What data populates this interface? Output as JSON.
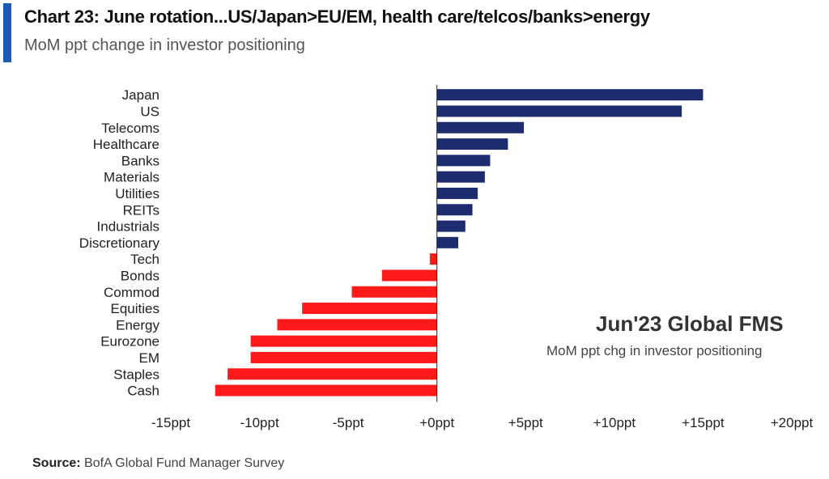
{
  "header": {
    "title": "Chart 23: June rotation...US/Japan>EU/EM, health care/telcos/banks>energy",
    "subtitle": "MoM ppt change in investor positioning"
  },
  "annotation": {
    "title": "Jun'23 Global FMS",
    "subtitle": "MoM ppt chg in investor positioning"
  },
  "source": {
    "label": "Source:",
    "text": "BofA Global Fund Manager Survey"
  },
  "colors": {
    "positive": "#1c2c6e",
    "negative": "#ff1a1a",
    "accent": "#1a5bb5"
  },
  "chart_data": {
    "type": "bar",
    "orientation": "horizontal",
    "categories": [
      "Japan",
      "US",
      "Telecoms",
      "Healthcare",
      "Banks",
      "Materials",
      "Utilities",
      "REITs",
      "Industrials",
      "Discretionary",
      "Tech",
      "Bonds",
      "Commod",
      "Equities",
      "Energy",
      "Eurozone",
      "EM",
      "Staples",
      "Cash"
    ],
    "values": [
      15,
      13.8,
      4.9,
      4.0,
      3.0,
      2.7,
      2.3,
      2.0,
      1.6,
      1.2,
      -0.4,
      -3.1,
      -4.8,
      -7.6,
      -9.0,
      -10.5,
      -10.5,
      -11.8,
      -12.5
    ],
    "xlim": [
      -15,
      20
    ],
    "xticks": [
      "-15ppt",
      "-10ppt",
      "-5ppt",
      "+0ppt",
      "+5ppt",
      "+10ppt",
      "+15ppt",
      "+20ppt"
    ],
    "xtick_values": [
      -15,
      -10,
      -5,
      0,
      5,
      10,
      15,
      20
    ],
    "grid": false
  }
}
